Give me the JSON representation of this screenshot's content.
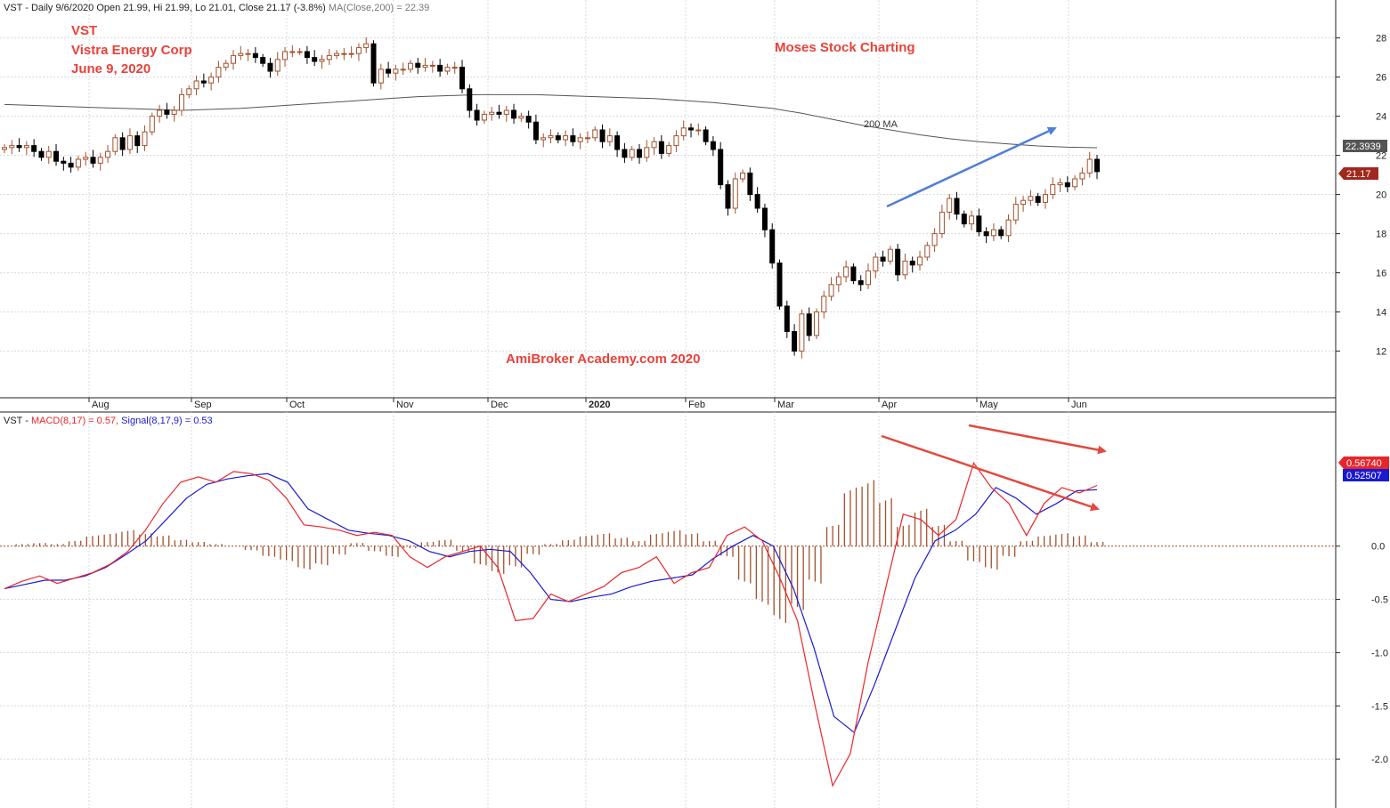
{
  "header": {
    "ticker": "VST",
    "price_line": "VST - Daily 9/6/2020 Open 21.99, Hi 21.99, Lo 21.01, Close 21.17 (-3.8%)",
    "ma_line": "MA(Close,200) = 22.39",
    "macd_prefix": "VST - ",
    "macd_label": "MACD(8,17) = 0.57,",
    "signal_label": "Signal(8,17,9) = 0.53"
  },
  "annotations": {
    "company_ticker": "VST",
    "company_name": "Vistra Energy Corp",
    "date": "June 9, 2020",
    "brand": "Moses Stock Charting",
    "watermark": "AmiBroker Academy.com  2020",
    "ma_label": "200 MA"
  },
  "colors": {
    "up_candle": "#a0522d",
    "down_candle": "#000000",
    "ma_line": "#555555",
    "macd_line": "#e8262a",
    "signal_line": "#1a1ad0",
    "histogram": "#a0522d",
    "arrow_blue": "#4f7fd6",
    "arrow_red": "#e24a3f",
    "annotation_text": "#e8423a",
    "grid": "#d8d8d8"
  },
  "chart_data": [
    {
      "type": "candlestick",
      "title": "VST - Daily",
      "x_labels": [
        "Aug",
        "Sep",
        "Oct",
        "Nov",
        "Dec",
        "2020",
        "Feb",
        "Mar",
        "Apr",
        "May",
        "Jun"
      ],
      "y_ticks": [
        "28",
        "26",
        "24",
        "22",
        "20",
        "18",
        "16",
        "14",
        "12"
      ],
      "ylim": [
        10.8,
        28.8
      ],
      "series": [
        {
          "name": "Close",
          "values": [
            22.4,
            22.5,
            22.4,
            22.5,
            22.2,
            21.9,
            22.2,
            21.7,
            21.6,
            21.4,
            21.8,
            21.9,
            21.6,
            21.9,
            22.2,
            22.9,
            22.3,
            23.0,
            22.5,
            23.2,
            24.0,
            24.3,
            24.1,
            24.3,
            25.1,
            25.4,
            25.8,
            25.7,
            26.0,
            26.5,
            26.7,
            27.1,
            27.2,
            27.2,
            27.0,
            26.7,
            26.3,
            26.9,
            27.3,
            27.3,
            27.3,
            27.0,
            26.8,
            26.9,
            27.1,
            27.2,
            27.2,
            27.2,
            27.5,
            27.7,
            25.7,
            26.4,
            26.2,
            26.4,
            26.4,
            26.7,
            26.5,
            26.6,
            26.6,
            26.3,
            26.5,
            26.5,
            25.4,
            24.3,
            23.8,
            24.1,
            24.2,
            24.1,
            24.3,
            23.9,
            24.0,
            23.7,
            22.8,
            22.9,
            23.0,
            22.8,
            23.0,
            22.7,
            22.9,
            22.9,
            23.3,
            22.7,
            23.0,
            22.3,
            21.9,
            22.3,
            21.9,
            22.4,
            22.7,
            22.1,
            22.5,
            23.0,
            23.4,
            23.3,
            23.3,
            22.7,
            22.3,
            20.5,
            19.3,
            20.8,
            21.1,
            20.0,
            19.3,
            18.2,
            16.5,
            14.3,
            13.0,
            12.0,
            13.9,
            12.8,
            14.0,
            14.8,
            15.4,
            15.8,
            16.3,
            15.6,
            15.4,
            16.1,
            16.8,
            16.6,
            17.2,
            15.9,
            16.6,
            16.4,
            16.8,
            17.4,
            18.0,
            19.1,
            19.8,
            19.0,
            18.5,
            18.9,
            18.1,
            17.9,
            18.2,
            17.9,
            18.7,
            19.5,
            19.7,
            19.9,
            19.6,
            20.0,
            20.5,
            20.6,
            20.4,
            20.8,
            21.1,
            21.8,
            21.17
          ]
        },
        {
          "name": "MA(Close,200)",
          "values": [
            24.6,
            24.55,
            24.5,
            24.45,
            24.4,
            24.35,
            24.3,
            24.35,
            24.4,
            24.5,
            24.6,
            24.7,
            24.8,
            24.9,
            25.0,
            25.05,
            25.1,
            25.1,
            25.1,
            25.05,
            25.0,
            24.95,
            24.9,
            24.8,
            24.7,
            24.55,
            24.4,
            24.15,
            23.85,
            23.55,
            23.3,
            23.05,
            22.85,
            22.7,
            22.58,
            22.48,
            22.42,
            22.39
          ]
        }
      ]
    },
    {
      "type": "line",
      "title": "MACD(8,17)",
      "y_ticks": [
        "0.0",
        "-0.5",
        "-1.0",
        "-1.5",
        "-2.0"
      ],
      "ylim": [
        -2.35,
        0.95
      ],
      "series": [
        {
          "name": "MACD(8,17)",
          "values": [
            -0.4,
            -0.33,
            -0.28,
            -0.35,
            -0.3,
            -0.25,
            -0.17,
            -0.05,
            0.15,
            0.4,
            0.6,
            0.65,
            0.6,
            0.7,
            0.68,
            0.62,
            0.45,
            0.2,
            0.18,
            0.15,
            0.1,
            0.13,
            0.1,
            -0.1,
            -0.2,
            -0.1,
            -0.05,
            0.0,
            -0.2,
            -0.7,
            -0.68,
            -0.45,
            -0.52,
            -0.45,
            -0.38,
            -0.25,
            -0.2,
            -0.1,
            -0.35,
            -0.25,
            -0.2,
            0.1,
            0.18,
            0.05,
            -0.3,
            -0.7,
            -1.5,
            -2.25,
            -1.95,
            -1.1,
            -0.4,
            0.3,
            0.25,
            0.1,
            0.25,
            0.78,
            0.55,
            0.4,
            0.1,
            0.4,
            0.55,
            0.5,
            0.57
          ]
        },
        {
          "name": "Signal(8,17,9)",
          "values": [
            -0.4,
            -0.36,
            -0.32,
            -0.32,
            -0.28,
            -0.2,
            -0.08,
            0.05,
            0.25,
            0.45,
            0.58,
            0.63,
            0.66,
            0.68,
            0.6,
            0.35,
            0.25,
            0.15,
            0.12,
            0.1,
            0.05,
            -0.05,
            -0.1,
            -0.05,
            -0.03,
            -0.05,
            -0.25,
            -0.5,
            -0.52,
            -0.48,
            -0.45,
            -0.38,
            -0.33,
            -0.3,
            -0.27,
            -0.12,
            0.0,
            0.1,
            0.0,
            -0.4,
            -0.95,
            -1.6,
            -1.75,
            -1.3,
            -0.8,
            -0.3,
            0.05,
            0.15,
            0.3,
            0.55,
            0.45,
            0.3,
            0.4,
            0.52,
            0.53
          ]
        },
        {
          "name": "Histogram",
          "values": [
            0.0,
            0.02,
            0.03,
            0.02,
            0.05,
            0.1,
            0.12,
            0.15,
            0.12,
            0.1,
            0.06,
            0.04,
            0.02,
            0.0,
            -0.04,
            -0.1,
            -0.14,
            -0.22,
            -0.18,
            -0.08,
            0.03,
            -0.05,
            -0.1,
            -0.02,
            0.04,
            0.06,
            -0.05,
            -0.18,
            -0.26,
            -0.2,
            -0.08,
            0.02,
            0.06,
            0.1,
            0.12,
            0.08,
            0.05,
            0.12,
            0.15,
            0.12,
            0.05,
            -0.1,
            -0.35,
            -0.55,
            -0.72,
            -0.6,
            -0.35,
            0.2,
            0.55,
            0.62,
            0.45,
            0.2,
            0.35,
            0.2,
            0.05,
            -0.15,
            -0.22,
            -0.1,
            0.05,
            0.1,
            0.12,
            0.1,
            0.04
          ]
        }
      ]
    }
  ],
  "price_tags": {
    "ma_tag": "22.3939",
    "close_tag": "21.17",
    "macd_tag": "0.56740",
    "signal_tag": "0.52507"
  }
}
